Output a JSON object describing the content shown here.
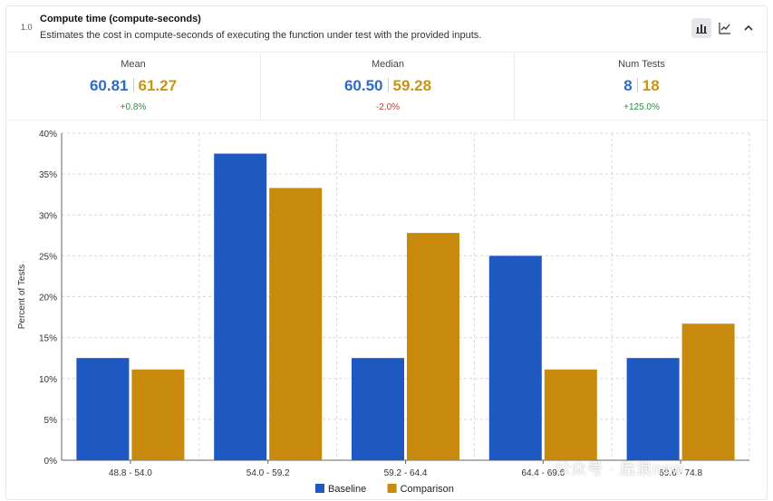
{
  "header": {
    "version": "1.0",
    "title": "Compute time (compute-seconds)",
    "subtitle": "Estimates the cost in compute-seconds of executing the function under test with the provided inputs.",
    "tools": [
      "bar-chart-icon",
      "line-chart-icon",
      "chevron-up-icon"
    ]
  },
  "stats": [
    {
      "label": "Mean",
      "baseline": "60.81",
      "comparison": "61.27",
      "delta": "+0.8%",
      "delta_sign": "pos"
    },
    {
      "label": "Median",
      "baseline": "60.50",
      "comparison": "59.28",
      "delta": "-2.0%",
      "delta_sign": "neg"
    },
    {
      "label": "Num Tests",
      "baseline": "8",
      "comparison": "18",
      "delta": "+125.0%",
      "delta_sign": "pos"
    }
  ],
  "colors": {
    "baseline": "#1f58c1",
    "comparison": "#c88a0d",
    "grid": "#d5d8dc"
  },
  "chart_data": {
    "type": "bar",
    "title": "",
    "xlabel": "",
    "ylabel": "Percent of Tests",
    "ylim": [
      0,
      40
    ],
    "yticks": [
      "0%",
      "5%",
      "10%",
      "15%",
      "20%",
      "25%",
      "30%",
      "35%",
      "40%"
    ],
    "grid": true,
    "legend": "bottom",
    "categories": [
      "48.8 - 54.0",
      "54.0 - 59.2",
      "59.2 - 64.4",
      "64.4 - 69.6",
      "69.6 - 74.8"
    ],
    "series": [
      {
        "name": "Baseline",
        "values": [
          12.5,
          37.5,
          12.5,
          25.0,
          12.5
        ]
      },
      {
        "name": "Comparison",
        "values": [
          11.1,
          33.3,
          27.8,
          11.1,
          16.7
        ]
      }
    ]
  },
  "watermark": "公众号 · 后浪new"
}
